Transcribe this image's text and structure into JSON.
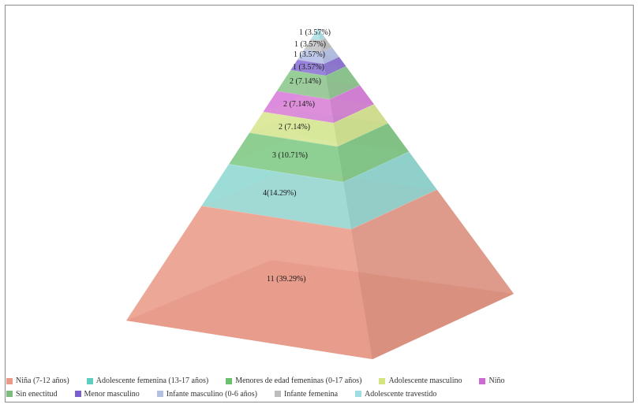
{
  "chart_data": {
    "type": "pyramid",
    "title": "",
    "segments_bottom_to_top": [
      {
        "category": "Niña (7-12 años)",
        "value": 11,
        "percent": 39.29,
        "label": "11 (39.29%)",
        "color": "#e99a88"
      },
      {
        "category": "Adolescente femenina (13-17 años)",
        "value": 4,
        "percent": 14.29,
        "label": "4(14.29%)",
        "color": "#8fd8d2"
      },
      {
        "category": "Menores de edad femeninas (0-17 años)",
        "value": 3,
        "percent": 10.71,
        "label": "3 (10.71%)",
        "color": "#7ec882"
      },
      {
        "category": "Adolescente masculino",
        "value": 2,
        "percent": 7.14,
        "label": "2 (7.14%)",
        "color": "#d8e68e"
      },
      {
        "category": "Niño",
        "value": 2,
        "percent": 7.14,
        "label": "2 (7.14%)",
        "color": "#d77ad9"
      },
      {
        "category": "Sin enectitud",
        "value": 2,
        "percent": 7.14,
        "label": "2 (7.14%)",
        "color": "#89c78a"
      },
      {
        "category": "Menor masculino",
        "value": 1,
        "percent": 3.57,
        "label": "1 (3.57%)",
        "color": "#8a6fd6"
      },
      {
        "category": "Infante masculino (0-6 años)",
        "value": 1,
        "percent": 3.57,
        "label": "1 (3.57%)",
        "color": "#b6c2e6"
      },
      {
        "category": "Infante femenina",
        "value": 1,
        "percent": 3.57,
        "label": "1 (3.57%)",
        "color": "#c2c2c2"
      },
      {
        "category": "Adolescente travestido",
        "value": 1,
        "percent": 3.57,
        "label": "1 (3.57%)",
        "color": "#a9e1e6"
      }
    ],
    "legend": [
      {
        "label": "Niña (7-12 años)",
        "color": "#e99a88"
      },
      {
        "label": "Adolescente femenina (13-17 años)",
        "color": "#5fcdc2"
      },
      {
        "label": "Menores de edad femeninas (0-17 años)",
        "color": "#6cc06f"
      },
      {
        "label": "Adolescente masculino",
        "color": "#d5e47e"
      },
      {
        "label": "Niño",
        "color": "#d06ad3"
      },
      {
        "label": "Sin enectitud",
        "color": "#7dbb7e"
      },
      {
        "label": "Menor masculino",
        "color": "#7b5fd0"
      },
      {
        "label": "Infante masculino (0-6 años)",
        "color": "#b3bfe3"
      },
      {
        "label": "Infante femenina",
        "color": "#bdbdbd"
      },
      {
        "label": "Adolescente travestido",
        "color": "#9fdde3"
      }
    ],
    "legend_position": "bottom"
  }
}
